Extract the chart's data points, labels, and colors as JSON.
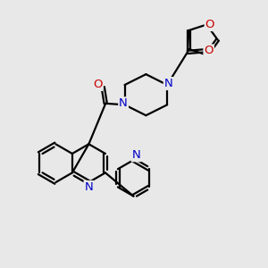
{
  "bg_color": "#e8e8e8",
  "bond_color": "#000000",
  "n_color": "#0000cc",
  "o_color": "#cc0000",
  "line_width": 1.6,
  "font_size": 9.5,
  "fig_size": [
    3.0,
    3.0
  ],
  "dpi": 100,
  "xlim": [
    0,
    10
  ],
  "ylim": [
    0,
    10
  ]
}
